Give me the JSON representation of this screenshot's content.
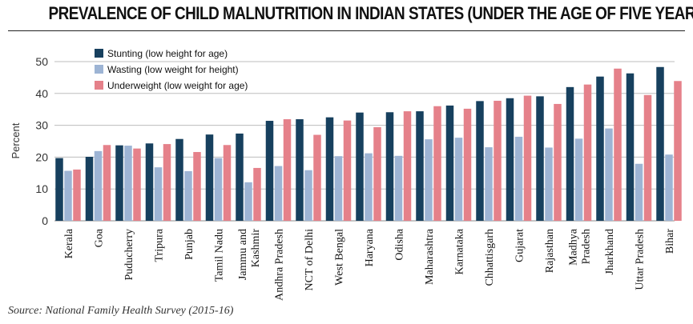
{
  "header": {
    "title": "PREVALENCE OF CHILD MALNUTRITION IN INDIAN STATES (UNDER THE AGE OF FIVE YEARS)"
  },
  "footer": {
    "source": "Source: National Family Health Survey (2015-16)"
  },
  "colors": {
    "stunting": "#17405e",
    "wasting": "#9db4d4",
    "underweight": "#e5818a",
    "grid": "#bdbdbd"
  },
  "chart_data": {
    "type": "bar",
    "ylabel": "Percent",
    "ylim": [
      0,
      50
    ],
    "yticks": [
      0,
      10,
      20,
      30,
      40,
      50
    ],
    "grid": true,
    "legend_position": "top-left",
    "categories": [
      [
        "Kerala"
      ],
      [
        "Goa"
      ],
      [
        "Puducherry"
      ],
      [
        "Tripura"
      ],
      [
        "Punjab"
      ],
      [
        "Tamil Nadu"
      ],
      [
        "Jammu and",
        "Kashmir"
      ],
      [
        "Andhra Pradesh"
      ],
      [
        "NCT of Delhi"
      ],
      [
        "West Bengal"
      ],
      [
        "Haryana"
      ],
      [
        "Odisha"
      ],
      [
        "Maharashtra"
      ],
      [
        "Karnataka"
      ],
      [
        "Chhattisgarh"
      ],
      [
        "Gujarat"
      ],
      [
        "Rajasthan"
      ],
      [
        "Madhya",
        "Pradesh"
      ],
      [
        "Jharkhand"
      ],
      [
        "Uttar Pradesh"
      ],
      [
        "Bihar"
      ]
    ],
    "series": [
      {
        "name": "Stunting (low height for age)",
        "values": [
          19.7,
          20.1,
          23.7,
          24.3,
          25.7,
          27.1,
          27.4,
          31.4,
          31.9,
          32.5,
          34.0,
          34.1,
          34.4,
          36.2,
          37.6,
          38.5,
          39.1,
          42.0,
          45.3,
          46.3,
          48.3
        ]
      },
      {
        "name": "Wasting (low weight for height)",
        "values": [
          15.7,
          21.9,
          23.6,
          16.8,
          15.6,
          19.7,
          12.1,
          17.2,
          15.9,
          20.3,
          21.2,
          20.4,
          25.6,
          26.1,
          23.1,
          26.4,
          23.0,
          25.8,
          29.0,
          17.9,
          20.8
        ]
      },
      {
        "name": "Underweight (low weight for age)",
        "values": [
          16.1,
          23.8,
          22.7,
          24.1,
          21.6,
          23.8,
          16.6,
          31.9,
          27.0,
          31.5,
          29.4,
          34.4,
          36.0,
          35.2,
          37.7,
          39.3,
          36.7,
          42.8,
          47.8,
          39.5,
          43.9
        ]
      }
    ]
  }
}
